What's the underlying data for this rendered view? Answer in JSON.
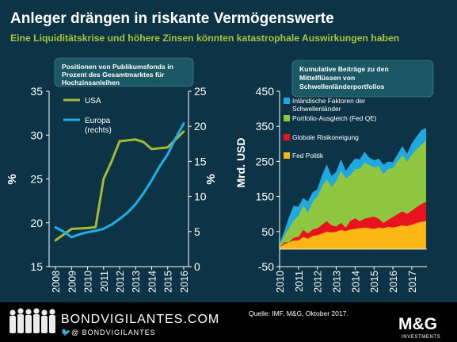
{
  "header": {
    "title": "Anleger drängen in riskante Vermögenswerte",
    "subtitle": "Eine Liquiditätskrise und höhere Zinsen könnten katastrophale Auswirkungen haben"
  },
  "footer": {
    "brand": "BONDVIGILANTES.COM",
    "twitter": "@ BONDVIGILANTES",
    "source": "Quelle: IMF, M&G, Oktober 2017.",
    "logo": "M&G",
    "logo_sub": "INVESTMENTS"
  },
  "colors": {
    "background": "#0d3446",
    "title_text": "#ffffff",
    "subtitle_text": "#a9c43c",
    "box_fill": "#1c5766",
    "footer_bar": "#000000",
    "usa": "#a5b933",
    "europa": "#21aee4",
    "inland": "#20a8e0",
    "portfolio": "#8ec63f",
    "risiko": "#e8131e",
    "fed": "#fbb814"
  },
  "chart_data": [
    {
      "type": "line",
      "title": "Positionen von Publikumsfonds in Prozent des Gesamtmarktes für Hochzinsanleihen",
      "xlabel": "",
      "ylabel_left": "%",
      "ylabel_right": "%",
      "categories": [
        "2008",
        "2009",
        "2010",
        "2011",
        "2012",
        "2013",
        "2014",
        "2015",
        "2016"
      ],
      "ylim_left": [
        15,
        35
      ],
      "ylim_right": [
        0,
        25
      ],
      "yticks_left": [
        15,
        20,
        25,
        30,
        35
      ],
      "yticks_right": [
        0,
        5,
        10,
        15,
        20,
        25
      ],
      "grid": false,
      "legend_position": "top-left",
      "series": [
        {
          "name": "USA",
          "axis": "left",
          "color": "#a5b933",
          "x": [
            2008.0,
            2009.0,
            2010.0,
            2010.5,
            2011.0,
            2011.5,
            2012.0,
            2013.0,
            2013.5,
            2014.0,
            2015.0,
            2016.0
          ],
          "values": [
            18.0,
            19.3,
            19.4,
            19.5,
            25.0,
            27.0,
            29.3,
            29.5,
            29.2,
            28.4,
            28.6,
            30.4
          ]
        },
        {
          "name": "Europa\n(rechts)",
          "axis": "right",
          "color": "#21aee4",
          "x": [
            2008.0,
            2008.5,
            2009.0,
            2009.5,
            2010.0,
            2010.5,
            2011.0,
            2011.5,
            2012.0,
            2012.5,
            2013.0,
            2013.5,
            2014.0,
            2014.5,
            2015.0,
            2015.5,
            2016.0
          ],
          "values": [
            5.6,
            5.0,
            4.2,
            4.6,
            4.9,
            5.1,
            5.4,
            6.0,
            6.8,
            7.7,
            8.9,
            10.5,
            12.3,
            14.3,
            16.0,
            18.3,
            20.4
          ]
        }
      ]
    },
    {
      "type": "area",
      "stacked": true,
      "title": "Kumulative Beiträge zu den Mittelflüssen von Schwellenländerportfolios",
      "xlabel": "",
      "ylabel": "Mrd. USD",
      "categories": [
        "2010",
        "2011",
        "2012",
        "2013",
        "2014",
        "2015",
        "2016",
        "2017"
      ],
      "ylim": [
        -50,
        450
      ],
      "yticks": [
        -50,
        50,
        150,
        250,
        350,
        450
      ],
      "grid": false,
      "legend_position": "top-left",
      "x": [
        2010.0,
        2010.25,
        2010.5,
        2010.75,
        2011.0,
        2011.25,
        2011.5,
        2011.75,
        2012.0,
        2012.25,
        2012.5,
        2012.75,
        2013.0,
        2013.25,
        2013.5,
        2013.75,
        2014.0,
        2014.25,
        2014.5,
        2014.75,
        2015.0,
        2015.25,
        2015.5,
        2015.75,
        2016.0,
        2016.25,
        2016.5,
        2016.75,
        2017.0,
        2017.25,
        2017.5,
        2017.75
      ],
      "series": [
        {
          "name": "Fed Politik",
          "color": "#fbb814",
          "values": [
            5,
            15,
            20,
            25,
            25,
            35,
            30,
            38,
            40,
            45,
            50,
            48,
            50,
            55,
            52,
            56,
            58,
            60,
            62,
            60,
            58,
            62,
            60,
            64,
            62,
            65,
            68,
            66,
            70,
            75,
            78,
            80
          ]
        },
        {
          "name": "Globale Risikoneigung",
          "color": "#e8131e",
          "values": [
            0,
            5,
            0,
            8,
            10,
            20,
            15,
            18,
            20,
            25,
            30,
            20,
            15,
            20,
            10,
            25,
            30,
            20,
            25,
            30,
            35,
            25,
            15,
            20,
            30,
            35,
            40,
            35,
            40,
            45,
            50,
            55
          ]
        },
        {
          "name": "Portfolio-Ausgleich (Fed QE)",
          "color": "#8ec63f",
          "values": [
            5,
            20,
            40,
            50,
            60,
            70,
            60,
            80,
            90,
            110,
            120,
            110,
            130,
            150,
            140,
            130,
            140,
            150,
            160,
            150,
            140,
            150,
            140,
            145,
            140,
            150,
            160,
            150,
            160,
            165,
            170,
            175
          ]
        },
        {
          "name": "Inländische Faktoren der Schwellenländer",
          "color": "#20a8e0",
          "values": [
            5,
            10,
            30,
            40,
            25,
            20,
            30,
            25,
            20,
            30,
            40,
            30,
            25,
            30,
            20,
            30,
            30,
            25,
            30,
            20,
            20,
            20,
            25,
            20,
            15,
            20,
            25,
            20,
            30,
            35,
            40,
            35
          ]
        }
      ]
    }
  ]
}
